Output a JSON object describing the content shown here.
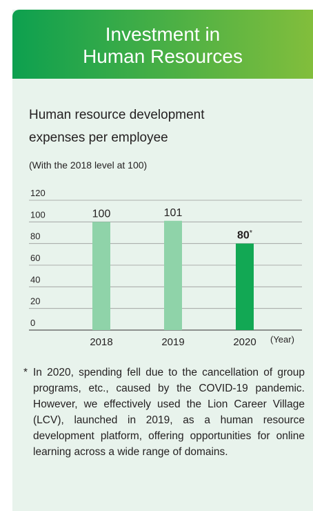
{
  "header": {
    "title_lines": [
      "Investment in",
      "Human Resources"
    ]
  },
  "chart_data": {
    "type": "bar",
    "title_lines": [
      "Human resource development",
      "expenses per employee"
    ],
    "subtitle": "(With the 2018 level at 100)",
    "categories": [
      "2018",
      "2019",
      "2020"
    ],
    "x_label": "(Year)",
    "values": [
      100,
      101,
      80
    ],
    "colors": [
      "#8fd3a9",
      "#8fd3a9",
      "#12a854"
    ],
    "emphasis": [
      false,
      false,
      true
    ],
    "value_marker": {
      "index": 2,
      "text": "*"
    },
    "ylim": [
      0,
      120
    ],
    "yticks": [
      0,
      20,
      40,
      60,
      80,
      100,
      120
    ],
    "grid": true
  },
  "footnote": {
    "marker": "*",
    "text": "In 2020, spending fell due to the cancellation of group programs, etc., caused by the COVID-19 pandemic. However, we effectively used the Lion Career Village (LCV), launched in 2019, as a human resource development platform, offering opportunities for online learning across a wide range of domains."
  }
}
